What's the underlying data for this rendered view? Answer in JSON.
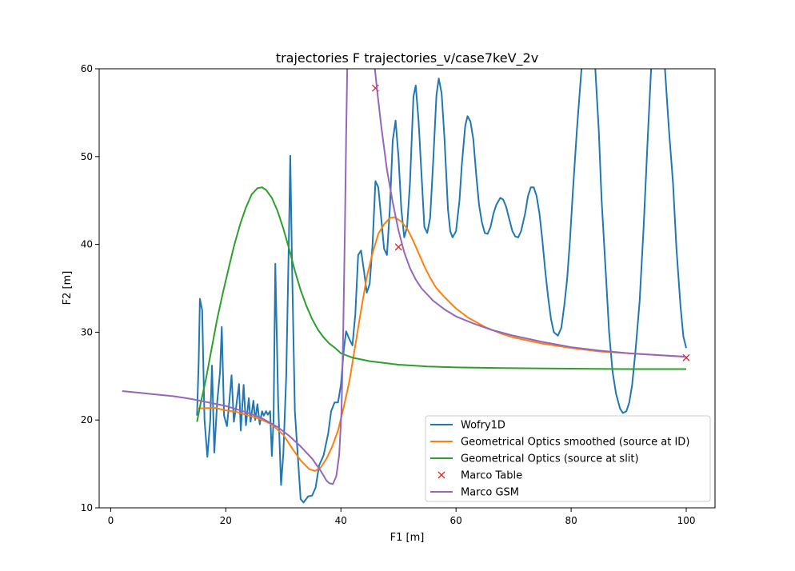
{
  "chart_data": {
    "type": "line",
    "title": "trajectories F trajectories_v/case7keV_2v",
    "xlabel": "F1 [m]",
    "ylabel": "F2 [m]",
    "xlim": [
      -2,
      105
    ],
    "ylim": [
      10,
      60
    ],
    "xticks": [
      0,
      20,
      40,
      60,
      80,
      100
    ],
    "yticks": [
      10,
      20,
      30,
      40,
      50,
      60
    ],
    "grid": false,
    "legend_position": "lower-right",
    "series": [
      {
        "name": "Wofry1D",
        "color": "#1f77b4",
        "style": "line",
        "points": [
          [
            15,
            20.5
          ],
          [
            15.3,
            27
          ],
          [
            15.5,
            33.8
          ],
          [
            15.9,
            32.5
          ],
          [
            16.3,
            20
          ],
          [
            16.8,
            15.8
          ],
          [
            17.3,
            20
          ],
          [
            17.6,
            26.2
          ],
          [
            18,
            16.3
          ],
          [
            18.5,
            22
          ],
          [
            19,
            25.5
          ],
          [
            19.3,
            30.6
          ],
          [
            19.7,
            20.5
          ],
          [
            20.2,
            19.3
          ],
          [
            20.6,
            22
          ],
          [
            21,
            25.1
          ],
          [
            21.4,
            19.8
          ],
          [
            21.8,
            21.5
          ],
          [
            22.3,
            24.1
          ],
          [
            22.6,
            18.8
          ],
          [
            23.1,
            24
          ],
          [
            23.5,
            19.4
          ],
          [
            24,
            22.5
          ],
          [
            24.3,
            19.8
          ],
          [
            24.8,
            22.2
          ],
          [
            25.1,
            20
          ],
          [
            25.5,
            21.8
          ],
          [
            25.9,
            19.5
          ],
          [
            26.3,
            21
          ],
          [
            26.6,
            20.5
          ],
          [
            27,
            21
          ],
          [
            27.3,
            20.6
          ],
          [
            27.7,
            21
          ],
          [
            28,
            15.9
          ],
          [
            28.3,
            20
          ],
          [
            28.6,
            37.8
          ],
          [
            29.1,
            22
          ],
          [
            29.6,
            12.6
          ],
          [
            30,
            16.2
          ],
          [
            30.5,
            25
          ],
          [
            31,
            42
          ],
          [
            31.2,
            50.1
          ],
          [
            31.5,
            38
          ],
          [
            32,
            21
          ],
          [
            32.6,
            15
          ],
          [
            33,
            11
          ],
          [
            33.5,
            10.6
          ],
          [
            34.3,
            11.3
          ],
          [
            35,
            11.4
          ],
          [
            35.6,
            12.3
          ],
          [
            36.2,
            14.8
          ],
          [
            37,
            16
          ],
          [
            37.8,
            18.5
          ],
          [
            38.3,
            21
          ],
          [
            38.9,
            22
          ],
          [
            39.5,
            22
          ],
          [
            40,
            24
          ],
          [
            40.5,
            28
          ],
          [
            40.9,
            30.1
          ],
          [
            41.4,
            29.3
          ],
          [
            42,
            28.5
          ],
          [
            42.5,
            32
          ],
          [
            43,
            38.8
          ],
          [
            43.5,
            39.3
          ],
          [
            44,
            37
          ],
          [
            44.5,
            34.5
          ],
          [
            45,
            35.5
          ],
          [
            45.5,
            40
          ],
          [
            46,
            47.2
          ],
          [
            46.5,
            46.5
          ],
          [
            47,
            43
          ],
          [
            47.5,
            39.5
          ],
          [
            48,
            38.8
          ],
          [
            48.5,
            44
          ],
          [
            49,
            51.8
          ],
          [
            49.5,
            54.1
          ],
          [
            50,
            50
          ],
          [
            50.5,
            44
          ],
          [
            51,
            40.8
          ],
          [
            51.5,
            42
          ],
          [
            52,
            47
          ],
          [
            52.6,
            56.8
          ],
          [
            53,
            58.1
          ],
          [
            53.5,
            54
          ],
          [
            54,
            48
          ],
          [
            54.5,
            42
          ],
          [
            55,
            41.3
          ],
          [
            55.5,
            43
          ],
          [
            56,
            49
          ],
          [
            56.6,
            57
          ],
          [
            57,
            58.9
          ],
          [
            57.5,
            57.2
          ],
          [
            58,
            52
          ],
          [
            58.6,
            44
          ],
          [
            59,
            41.5
          ],
          [
            59.4,
            40.8
          ],
          [
            60,
            41.5
          ],
          [
            60.6,
            45
          ],
          [
            61,
            49
          ],
          [
            61.6,
            53.5
          ],
          [
            62,
            54.6
          ],
          [
            62.5,
            54
          ],
          [
            63,
            52
          ],
          [
            63.5,
            48
          ],
          [
            64,
            44.5
          ],
          [
            64.5,
            42.5
          ],
          [
            65,
            41.3
          ],
          [
            65.5,
            41.2
          ],
          [
            66,
            42
          ],
          [
            66.5,
            43.5
          ],
          [
            67,
            44.5
          ],
          [
            67.7,
            45.3
          ],
          [
            68.2,
            45.1
          ],
          [
            68.7,
            44.3
          ],
          [
            69.2,
            43
          ],
          [
            69.8,
            41.5
          ],
          [
            70.3,
            40.9
          ],
          [
            70.8,
            40.8
          ],
          [
            71.3,
            41.5
          ],
          [
            72,
            43.5
          ],
          [
            72.5,
            45.5
          ],
          [
            73,
            46.5
          ],
          [
            73.5,
            46.5
          ],
          [
            74,
            45.5
          ],
          [
            74.5,
            43.5
          ],
          [
            75,
            40.5
          ],
          [
            75.5,
            37
          ],
          [
            76,
            34
          ],
          [
            76.5,
            31.5
          ],
          [
            77,
            30
          ],
          [
            77.7,
            29.6
          ],
          [
            78.3,
            30.5
          ],
          [
            78.8,
            33
          ],
          [
            79.3,
            36
          ],
          [
            79.8,
            40.5
          ],
          [
            80.3,
            46
          ],
          [
            81,
            53
          ],
          [
            81.8,
            60
          ],
          [
            83,
            63
          ],
          [
            84.2,
            60
          ],
          [
            84.8,
            53
          ],
          [
            85.3,
            45
          ],
          [
            86,
            37
          ],
          [
            86.6,
            30
          ],
          [
            87.2,
            25.5
          ],
          [
            87.8,
            23
          ],
          [
            88.5,
            21.3
          ],
          [
            89,
            20.8
          ],
          [
            89.6,
            21
          ],
          [
            90.1,
            22
          ],
          [
            90.6,
            24
          ],
          [
            91.2,
            28
          ],
          [
            91.9,
            33.5
          ],
          [
            92.6,
            42
          ],
          [
            93.3,
            52
          ],
          [
            93.9,
            60
          ],
          [
            95,
            63
          ],
          [
            96.3,
            60
          ],
          [
            97,
            53
          ],
          [
            97.7,
            47
          ],
          [
            98.3,
            39.5
          ],
          [
            99,
            33
          ],
          [
            99.5,
            29.5
          ],
          [
            100,
            28.2
          ]
        ]
      },
      {
        "name": "Geometrical Optics smoothed (source at ID)",
        "color": "#ff7f0e",
        "style": "line",
        "points": [
          [
            15,
            21.3
          ],
          [
            18,
            21.4
          ],
          [
            20,
            21.1
          ],
          [
            22,
            20.9
          ],
          [
            24,
            20.5
          ],
          [
            26,
            20.1
          ],
          [
            28,
            19.5
          ],
          [
            30,
            18.3
          ],
          [
            31.5,
            16.8
          ],
          [
            33,
            15.4
          ],
          [
            34.5,
            14.4
          ],
          [
            35.5,
            14.2
          ],
          [
            36.5,
            14.6
          ],
          [
            37.5,
            15.6
          ],
          [
            38.5,
            17
          ],
          [
            39.5,
            18.8
          ],
          [
            40.5,
            21.5
          ],
          [
            41.5,
            24.5
          ],
          [
            42.5,
            28.5
          ],
          [
            43.5,
            32.5
          ],
          [
            44.5,
            36.3
          ],
          [
            45.5,
            39
          ],
          [
            46.5,
            41.2
          ],
          [
            47.5,
            42.3
          ],
          [
            48.5,
            43
          ],
          [
            49.3,
            43.1
          ],
          [
            50.5,
            42.6
          ],
          [
            51.5,
            41.8
          ],
          [
            52.5,
            40.5
          ],
          [
            53.5,
            39
          ],
          [
            54.5,
            37.5
          ],
          [
            55.5,
            36.2
          ],
          [
            56.5,
            35.1
          ],
          [
            58,
            34
          ],
          [
            60,
            32.7
          ],
          [
            62,
            31.7
          ],
          [
            65,
            30.6
          ],
          [
            68,
            29.8
          ],
          [
            70,
            29.4
          ],
          [
            75,
            28.7
          ],
          [
            80,
            28.2
          ],
          [
            85,
            27.8
          ],
          [
            90,
            27.6
          ],
          [
            95,
            27.4
          ],
          [
            100,
            27.2
          ]
        ]
      },
      {
        "name": "Geometrical Optics (source at slit)",
        "color": "#2ca02c",
        "style": "line",
        "points": [
          [
            15,
            19.8
          ],
          [
            15.5,
            21.5
          ],
          [
            16.5,
            24.5
          ],
          [
            17.5,
            28
          ],
          [
            18.5,
            31.5
          ],
          [
            19.5,
            34.5
          ],
          [
            20.5,
            37.3
          ],
          [
            21.5,
            40
          ],
          [
            22.5,
            42.3
          ],
          [
            23.5,
            44.2
          ],
          [
            24.5,
            45.7
          ],
          [
            25.5,
            46.4
          ],
          [
            26.3,
            46.5
          ],
          [
            27,
            46.2
          ],
          [
            28,
            45.3
          ],
          [
            29,
            43.8
          ],
          [
            30,
            41.8
          ],
          [
            31,
            39.5
          ],
          [
            32,
            37
          ],
          [
            33,
            34.8
          ],
          [
            34,
            33
          ],
          [
            35,
            31.5
          ],
          [
            36,
            30.3
          ],
          [
            37,
            29.4
          ],
          [
            38,
            28.7
          ],
          [
            39,
            28.2
          ],
          [
            40,
            27.6
          ],
          [
            42,
            27.1
          ],
          [
            45,
            26.7
          ],
          [
            50,
            26.3
          ],
          [
            55,
            26.1
          ],
          [
            60,
            26
          ],
          [
            70,
            25.9
          ],
          [
            80,
            25.85
          ],
          [
            90,
            25.8
          ],
          [
            100,
            25.8
          ]
        ]
      },
      {
        "name": "Marco Table",
        "color": "#d62728",
        "style": "marker",
        "points": [
          [
            46,
            57.8
          ],
          [
            50,
            39.7
          ],
          [
            100,
            27.1
          ]
        ]
      },
      {
        "name": "Marco GSM",
        "color": "#9467bd",
        "style": "line",
        "points": [
          [
            2,
            23.3
          ],
          [
            5,
            23.1
          ],
          [
            8,
            22.9
          ],
          [
            11,
            22.7
          ],
          [
            14,
            22.4
          ],
          [
            17,
            22
          ],
          [
            20,
            21.6
          ],
          [
            23,
            21
          ],
          [
            26,
            20.3
          ],
          [
            29,
            19.2
          ],
          [
            31,
            18.2
          ],
          [
            33,
            17
          ],
          [
            35,
            15.6
          ],
          [
            36.5,
            14.2
          ],
          [
            37.5,
            13.1
          ],
          [
            38,
            12.8
          ],
          [
            38.6,
            12.7
          ],
          [
            39.2,
            13.6
          ],
          [
            39.7,
            16
          ],
          [
            40.1,
            21
          ],
          [
            40.4,
            30
          ],
          [
            40.7,
            42
          ],
          [
            40.9,
            52
          ],
          [
            41.1,
            60
          ],
          [
            41.3,
            66
          ],
          [
            45.9,
            60
          ],
          [
            46.3,
            57.5
          ],
          [
            47,
            53.5
          ],
          [
            48,
            48.5
          ],
          [
            49,
            44.8
          ],
          [
            50,
            41.6
          ],
          [
            51,
            39.1
          ],
          [
            52,
            37.3
          ],
          [
            53,
            36
          ],
          [
            54,
            35
          ],
          [
            56,
            33.6
          ],
          [
            58,
            32.6
          ],
          [
            60,
            31.8
          ],
          [
            63,
            31
          ],
          [
            66,
            30.3
          ],
          [
            70,
            29.6
          ],
          [
            75,
            28.9
          ],
          [
            80,
            28.3
          ],
          [
            85,
            27.9
          ],
          [
            90,
            27.6
          ],
          [
            95,
            27.4
          ],
          [
            100,
            27.2
          ]
        ]
      }
    ]
  }
}
